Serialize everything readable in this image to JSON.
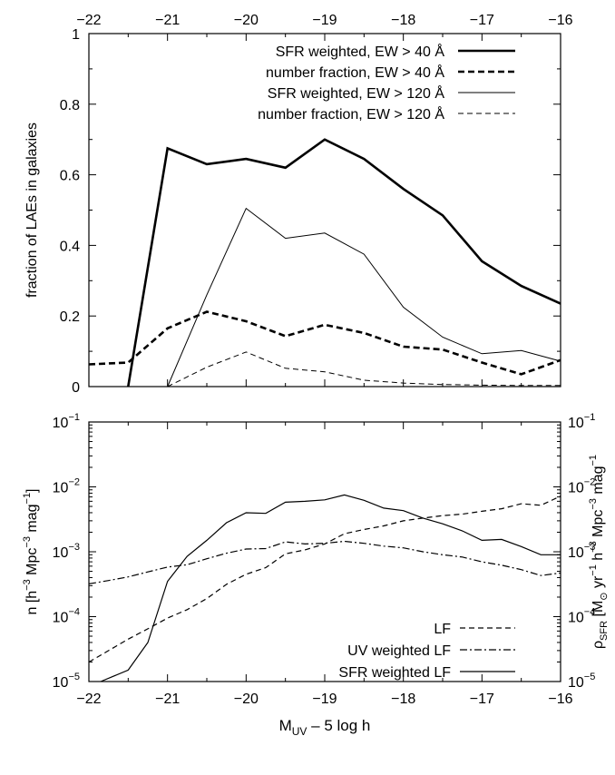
{
  "chart_data": [
    {
      "type": "line",
      "ylabel": "fraction of LAEs in galaxies",
      "xlim": [
        -22,
        -16
      ],
      "ylim": [
        0,
        1
      ],
      "x_ticks": [
        -22,
        -21,
        -20,
        -19,
        -18,
        -17,
        -16
      ],
      "y_ticks": [
        0,
        0.2,
        0.4,
        0.6,
        0.8,
        1
      ],
      "y_tick_labels": [
        "0",
        "0.2",
        "0.4",
        "0.6",
        "0.8",
        "1"
      ],
      "legend_position": "top-right",
      "series": [
        {
          "name": "SFR weighted, EW > 40 Å",
          "style": "thick-solid",
          "x": [
            -21.5,
            -21,
            -20.5,
            -20,
            -19.5,
            -19,
            -18.5,
            -18,
            -17.5,
            -17,
            -16.5,
            -16
          ],
          "y": [
            0.0,
            0.675,
            0.63,
            0.645,
            0.62,
            0.7,
            0.645,
            0.56,
            0.485,
            0.355,
            0.285,
            0.235
          ]
        },
        {
          "name": "number fraction, EW > 40 Å",
          "style": "thick-dashed",
          "x": [
            -22,
            -21.5,
            -21,
            -20.5,
            -20,
            -19.5,
            -19,
            -18.5,
            -18,
            -17.5,
            -17,
            -16.5,
            -16
          ],
          "y": [
            0.063,
            0.068,
            0.165,
            0.212,
            0.185,
            0.143,
            0.175,
            0.152,
            0.113,
            0.105,
            0.068,
            0.035,
            0.075
          ]
        },
        {
          "name": "SFR weighted, EW > 120 Å",
          "style": "thin-solid",
          "x": [
            -21,
            -20.5,
            -20,
            -19.5,
            -19,
            -18.5,
            -18,
            -17.5,
            -17,
            -16.5,
            -16
          ],
          "y": [
            0.0,
            0.26,
            0.505,
            0.42,
            0.435,
            0.375,
            0.225,
            0.14,
            0.093,
            0.102,
            0.072
          ]
        },
        {
          "name": "number fraction, EW > 120 Å",
          "style": "thin-dashed",
          "x": [
            -21,
            -20.5,
            -20,
            -19.5,
            -19,
            -18.5,
            -18,
            -17.5,
            -17,
            -16.5,
            -16
          ],
          "y": [
            0.0,
            0.055,
            0.098,
            0.052,
            0.042,
            0.018,
            0.01,
            0.006,
            0.004,
            0.003,
            0.003
          ]
        }
      ]
    },
    {
      "type": "line",
      "xlabel": "M",
      "xlabel_sub": "UV",
      "xlabel_rest": " – 5 log h",
      "ylabel": "n [h",
      "ylabel_right": "ρ",
      "xlim": [
        -22,
        -16
      ],
      "ylim": [
        1e-05,
        0.1
      ],
      "log_y": true,
      "y2lim": [
        1e-05,
        0.1
      ],
      "x_ticks": [
        -22,
        -21,
        -20,
        -19,
        -18,
        -17,
        -16
      ],
      "legend_position": "bottom-right",
      "series": [
        {
          "name": "LF",
          "style": "dashed",
          "x": [
            -22,
            -21.75,
            -21.5,
            -21.25,
            -21,
            -20.75,
            -20.5,
            -20.25,
            -20,
            -19.75,
            -19.5,
            -19.25,
            -19,
            -18.75,
            -18.5,
            -18.25,
            -18,
            -17.75,
            -17.5,
            -17.25,
            -17,
            -16.75,
            -16.5,
            -16.25,
            -16
          ],
          "y": [
            2e-05,
            3e-05,
            4.5e-05,
            6.5e-05,
            9.5e-05,
            0.000128,
            0.00019,
            0.000315,
            0.00045,
            0.00057,
            0.00093,
            0.00107,
            0.00132,
            0.0019,
            0.0022,
            0.0025,
            0.003,
            0.0033,
            0.0036,
            0.0038,
            0.0042,
            0.0046,
            0.0055,
            0.0052,
            0.0072
          ]
        },
        {
          "name": "UV weighted LF",
          "style": "dash-dot",
          "x": [
            -22,
            -21.75,
            -21.5,
            -21.25,
            -21,
            -20.75,
            -20.5,
            -20.25,
            -20,
            -19.75,
            -19.5,
            -19.25,
            -19,
            -18.75,
            -18.5,
            -18.25,
            -18,
            -17.75,
            -17.5,
            -17.25,
            -17,
            -16.75,
            -16.5,
            -16.25,
            -16
          ],
          "y": [
            0.00032,
            0.00036,
            0.00041,
            0.00049,
            0.00058,
            0.00063,
            0.00078,
            0.00095,
            0.0011,
            0.00112,
            0.00142,
            0.00132,
            0.00135,
            0.00145,
            0.00135,
            0.00122,
            0.00115,
            0.001,
            0.0009,
            0.00083,
            0.0007,
            0.00062,
            0.00053,
            0.00043,
            0.00047
          ]
        },
        {
          "name": "SFR weighted LF",
          "style": "solid",
          "x": [
            -21.85,
            -21.5,
            -21.25,
            -21,
            -20.75,
            -20.5,
            -20.25,
            -20,
            -19.75,
            -19.5,
            -19.25,
            -19,
            -18.75,
            -18.5,
            -18.25,
            -18,
            -17.75,
            -17.5,
            -17.25,
            -17,
            -16.75,
            -16.5,
            -16.25,
            -16
          ],
          "y": [
            1e-05,
            1.5e-05,
            4e-05,
            0.00035,
            0.00085,
            0.0015,
            0.0028,
            0.004,
            0.0039,
            0.0058,
            0.006,
            0.0063,
            0.0075,
            0.0062,
            0.0047,
            0.0043,
            0.0033,
            0.0027,
            0.0021,
            0.0015,
            0.00155,
            0.0012,
            0.0009,
            0.0009
          ]
        }
      ]
    }
  ]
}
